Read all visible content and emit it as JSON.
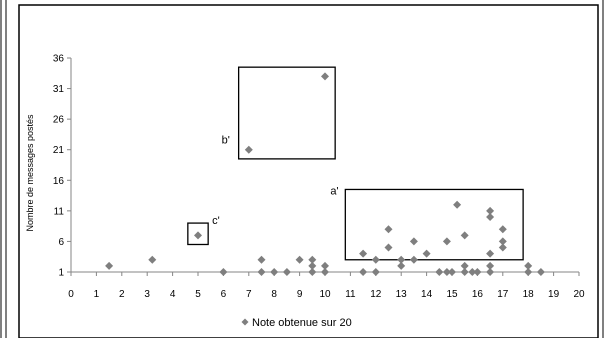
{
  "chart_data": {
    "type": "scatter",
    "title": "",
    "xlabel": "",
    "ylabel": "Nombre de messages postés",
    "xlim": [
      0,
      20
    ],
    "ylim": [
      1,
      36
    ],
    "x_ticks": [
      "0",
      "1",
      "2",
      "3",
      "4",
      "5",
      "6",
      "7",
      "8",
      "9",
      "10",
      "11",
      "12",
      "13",
      "14",
      "15",
      "16",
      "17",
      "18",
      "19",
      "20"
    ],
    "y_ticks": [
      "1",
      "6",
      "11",
      "16",
      "21",
      "26",
      "31",
      "36"
    ],
    "grid": false,
    "legend_position": "bottom",
    "marker_color": "#7f7f7f",
    "series": [
      {
        "name": "Note obtenue sur 20",
        "points": [
          [
            1.5,
            2
          ],
          [
            3.2,
            3
          ],
          [
            5,
            7
          ],
          [
            6,
            1
          ],
          [
            7,
            21
          ],
          [
            7.5,
            1
          ],
          [
            7.5,
            3
          ],
          [
            8,
            1
          ],
          [
            8.5,
            1
          ],
          [
            9,
            3
          ],
          [
            9.5,
            1
          ],
          [
            9.5,
            2
          ],
          [
            9.5,
            3
          ],
          [
            10,
            1
          ],
          [
            10,
            2
          ],
          [
            10,
            33
          ],
          [
            11.5,
            1
          ],
          [
            11.5,
            4
          ],
          [
            12,
            1
          ],
          [
            12,
            3
          ],
          [
            12.5,
            5
          ],
          [
            12.5,
            8
          ],
          [
            13,
            2
          ],
          [
            13,
            3
          ],
          [
            13.5,
            3
          ],
          [
            13.5,
            6
          ],
          [
            14,
            4
          ],
          [
            14.5,
            1
          ],
          [
            14.8,
            1
          ],
          [
            15,
            1
          ],
          [
            14.8,
            6
          ],
          [
            15.2,
            12
          ],
          [
            15.5,
            1
          ],
          [
            15.5,
            2
          ],
          [
            15.5,
            7
          ],
          [
            15.8,
            1
          ],
          [
            16,
            1
          ],
          [
            16.5,
            1
          ],
          [
            16.5,
            2
          ],
          [
            16.5,
            4
          ],
          [
            16.5,
            10
          ],
          [
            16.5,
            11
          ],
          [
            17,
            5
          ],
          [
            17,
            6
          ],
          [
            17,
            8
          ],
          [
            18,
            1
          ],
          [
            18,
            2
          ],
          [
            18.5,
            1
          ]
        ]
      }
    ],
    "annotations": [
      {
        "label": "a'",
        "box": {
          "x0": 10.8,
          "x1": 17.8,
          "y0": 3,
          "y1": 14.5
        }
      },
      {
        "label": "b'",
        "box": {
          "x0": 6.6,
          "x1": 10.4,
          "y0": 19.5,
          "y1": 34.5
        }
      },
      {
        "label": "c'",
        "box": {
          "x0": 4.6,
          "x1": 5.4,
          "y0": 5.5,
          "y1": 9
        }
      }
    ]
  }
}
